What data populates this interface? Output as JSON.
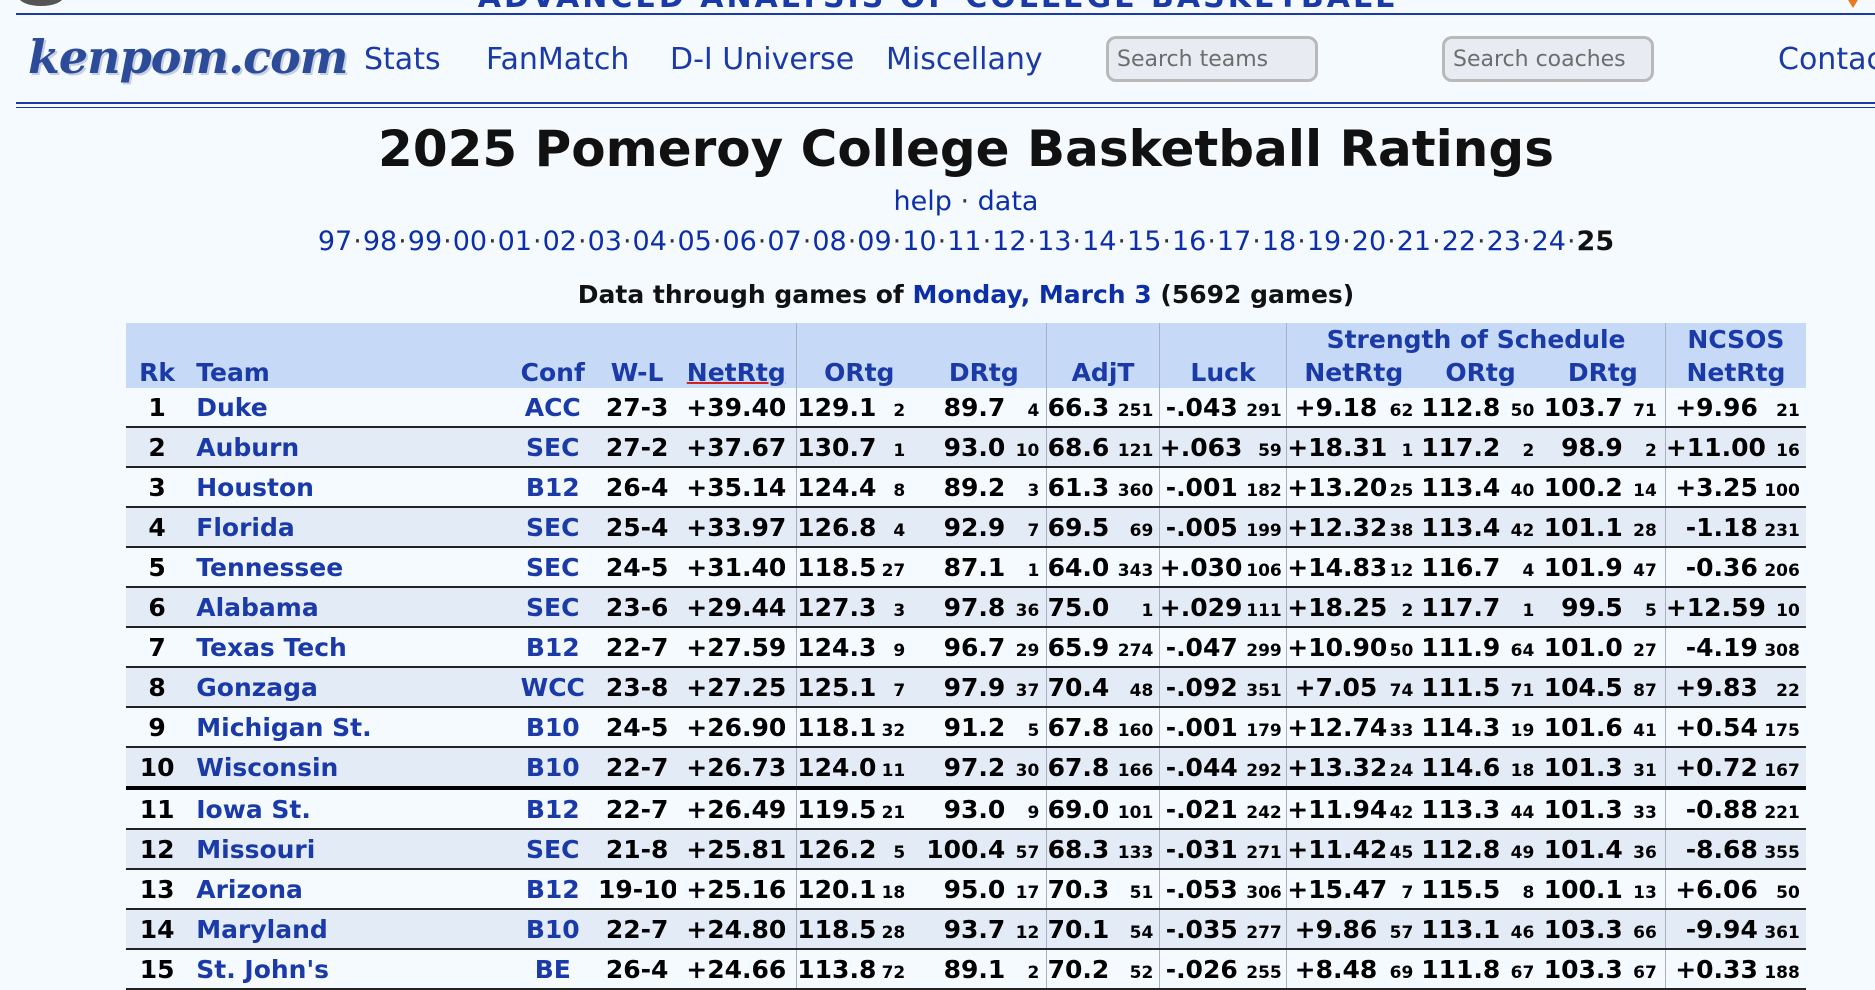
{
  "top_banner": {
    "title": "ADVANCED ANALYSIS OF COLLEGE BASKETBALL"
  },
  "nav": {
    "logo": "kenpom.com",
    "links": [
      "Stats",
      "FanMatch",
      "D-I Universe",
      "Miscellany"
    ],
    "search_teams_placeholder": "Search teams",
    "search_coaches_placeholder": "Search coaches",
    "contact": "Contac"
  },
  "page_title": "2025 Pomeroy College Basketball Ratings",
  "help_links": {
    "help": "help",
    "sep": "·",
    "data": "data"
  },
  "years": [
    "97",
    "98",
    "99",
    "00",
    "01",
    "02",
    "03",
    "04",
    "05",
    "06",
    "07",
    "08",
    "09",
    "10",
    "11",
    "12",
    "13",
    "14",
    "15",
    "16",
    "17",
    "18",
    "19",
    "20",
    "21",
    "22",
    "23",
    "24"
  ],
  "current_year": "25",
  "data_through": {
    "prefix": "Data through games of",
    "date": "Monday, March 3",
    "games": "(5692 games)"
  },
  "table": {
    "group_headers": {
      "sos": "Strength of Schedule",
      "ncsos": "NCSOS"
    },
    "headers": {
      "rk": "Rk",
      "team": "Team",
      "conf": "Conf",
      "wl": "W-L",
      "netrtg": "NetRtg",
      "ortg": "ORtg",
      "drtg": "DRtg",
      "adjt": "AdjT",
      "luck": "Luck",
      "sos_netrtg": "NetRtg",
      "sos_ortg": "ORtg",
      "sos_drtg": "DRtg",
      "ncsos_netrtg": "NetRtg"
    },
    "rows": [
      {
        "rk": "1",
        "team": "Duke",
        "conf": "ACC",
        "wl": "27-3",
        "net": "+39.40",
        "ortg": "129.1",
        "ortg_rk": "2",
        "drtg": "89.7",
        "drtg_rk": "4",
        "adjt": "66.3",
        "adjt_rk": "251",
        "luck": "-.043",
        "luck_rk": "291",
        "sos_net": "+9.18",
        "sos_net_rk": "62",
        "sos_o": "112.8",
        "sos_o_rk": "50",
        "sos_d": "103.7",
        "sos_d_rk": "71",
        "nc": "+9.96",
        "nc_rk": "21"
      },
      {
        "rk": "2",
        "team": "Auburn",
        "conf": "SEC",
        "wl": "27-2",
        "net": "+37.67",
        "ortg": "130.7",
        "ortg_rk": "1",
        "drtg": "93.0",
        "drtg_rk": "10",
        "adjt": "68.6",
        "adjt_rk": "121",
        "luck": "+.063",
        "luck_rk": "59",
        "sos_net": "+18.31",
        "sos_net_rk": "1",
        "sos_o": "117.2",
        "sos_o_rk": "2",
        "sos_d": "98.9",
        "sos_d_rk": "2",
        "nc": "+11.00",
        "nc_rk": "16"
      },
      {
        "rk": "3",
        "team": "Houston",
        "conf": "B12",
        "wl": "26-4",
        "net": "+35.14",
        "ortg": "124.4",
        "ortg_rk": "8",
        "drtg": "89.2",
        "drtg_rk": "3",
        "adjt": "61.3",
        "adjt_rk": "360",
        "luck": "-.001",
        "luck_rk": "182",
        "sos_net": "+13.20",
        "sos_net_rk": "25",
        "sos_o": "113.4",
        "sos_o_rk": "40",
        "sos_d": "100.2",
        "sos_d_rk": "14",
        "nc": "+3.25",
        "nc_rk": "100"
      },
      {
        "rk": "4",
        "team": "Florida",
        "conf": "SEC",
        "wl": "25-4",
        "net": "+33.97",
        "ortg": "126.8",
        "ortg_rk": "4",
        "drtg": "92.9",
        "drtg_rk": "7",
        "adjt": "69.5",
        "adjt_rk": "69",
        "luck": "-.005",
        "luck_rk": "199",
        "sos_net": "+12.32",
        "sos_net_rk": "38",
        "sos_o": "113.4",
        "sos_o_rk": "42",
        "sos_d": "101.1",
        "sos_d_rk": "28",
        "nc": "-1.18",
        "nc_rk": "231"
      },
      {
        "rk": "5",
        "team": "Tennessee",
        "conf": "SEC",
        "wl": "24-5",
        "net": "+31.40",
        "ortg": "118.5",
        "ortg_rk": "27",
        "drtg": "87.1",
        "drtg_rk": "1",
        "adjt": "64.0",
        "adjt_rk": "343",
        "luck": "+.030",
        "luck_rk": "106",
        "sos_net": "+14.83",
        "sos_net_rk": "12",
        "sos_o": "116.7",
        "sos_o_rk": "4",
        "sos_d": "101.9",
        "sos_d_rk": "47",
        "nc": "-0.36",
        "nc_rk": "206"
      },
      {
        "rk": "6",
        "team": "Alabama",
        "conf": "SEC",
        "wl": "23-6",
        "net": "+29.44",
        "ortg": "127.3",
        "ortg_rk": "3",
        "drtg": "97.8",
        "drtg_rk": "36",
        "adjt": "75.0",
        "adjt_rk": "1",
        "luck": "+.029",
        "luck_rk": "111",
        "sos_net": "+18.25",
        "sos_net_rk": "2",
        "sos_o": "117.7",
        "sos_o_rk": "1",
        "sos_d": "99.5",
        "sos_d_rk": "5",
        "nc": "+12.59",
        "nc_rk": "10"
      },
      {
        "rk": "7",
        "team": "Texas Tech",
        "conf": "B12",
        "wl": "22-7",
        "net": "+27.59",
        "ortg": "124.3",
        "ortg_rk": "9",
        "drtg": "96.7",
        "drtg_rk": "29",
        "adjt": "65.9",
        "adjt_rk": "274",
        "luck": "-.047",
        "luck_rk": "299",
        "sos_net": "+10.90",
        "sos_net_rk": "50",
        "sos_o": "111.9",
        "sos_o_rk": "64",
        "sos_d": "101.0",
        "sos_d_rk": "27",
        "nc": "-4.19",
        "nc_rk": "308"
      },
      {
        "rk": "8",
        "team": "Gonzaga",
        "conf": "WCC",
        "wl": "23-8",
        "net": "+27.25",
        "ortg": "125.1",
        "ortg_rk": "7",
        "drtg": "97.9",
        "drtg_rk": "37",
        "adjt": "70.4",
        "adjt_rk": "48",
        "luck": "-.092",
        "luck_rk": "351",
        "sos_net": "+7.05",
        "sos_net_rk": "74",
        "sos_o": "111.5",
        "sos_o_rk": "71",
        "sos_d": "104.5",
        "sos_d_rk": "87",
        "nc": "+9.83",
        "nc_rk": "22"
      },
      {
        "rk": "9",
        "team": "Michigan St.",
        "conf": "B10",
        "wl": "24-5",
        "net": "+26.90",
        "ortg": "118.1",
        "ortg_rk": "32",
        "drtg": "91.2",
        "drtg_rk": "5",
        "adjt": "67.8",
        "adjt_rk": "160",
        "luck": "-.001",
        "luck_rk": "179",
        "sos_net": "+12.74",
        "sos_net_rk": "33",
        "sos_o": "114.3",
        "sos_o_rk": "19",
        "sos_d": "101.6",
        "sos_d_rk": "41",
        "nc": "+0.54",
        "nc_rk": "175"
      },
      {
        "rk": "10",
        "team": "Wisconsin",
        "conf": "B10",
        "wl": "22-7",
        "net": "+26.73",
        "ortg": "124.0",
        "ortg_rk": "11",
        "drtg": "97.2",
        "drtg_rk": "30",
        "adjt": "67.8",
        "adjt_rk": "166",
        "luck": "-.044",
        "luck_rk": "292",
        "sos_net": "+13.32",
        "sos_net_rk": "24",
        "sos_o": "114.6",
        "sos_o_rk": "18",
        "sos_d": "101.3",
        "sos_d_rk": "31",
        "nc": "+0.72",
        "nc_rk": "167"
      },
      {
        "rk": "11",
        "team": "Iowa St.",
        "conf": "B12",
        "wl": "22-7",
        "net": "+26.49",
        "ortg": "119.5",
        "ortg_rk": "21",
        "drtg": "93.0",
        "drtg_rk": "9",
        "adjt": "69.0",
        "adjt_rk": "101",
        "luck": "-.021",
        "luck_rk": "242",
        "sos_net": "+11.94",
        "sos_net_rk": "42",
        "sos_o": "113.3",
        "sos_o_rk": "44",
        "sos_d": "101.3",
        "sos_d_rk": "33",
        "nc": "-0.88",
        "nc_rk": "221"
      },
      {
        "rk": "12",
        "team": "Missouri",
        "conf": "SEC",
        "wl": "21-8",
        "net": "+25.81",
        "ortg": "126.2",
        "ortg_rk": "5",
        "drtg": "100.4",
        "drtg_rk": "57",
        "adjt": "68.3",
        "adjt_rk": "133",
        "luck": "-.031",
        "luck_rk": "271",
        "sos_net": "+11.42",
        "sos_net_rk": "45",
        "sos_o": "112.8",
        "sos_o_rk": "49",
        "sos_d": "101.4",
        "sos_d_rk": "36",
        "nc": "-8.68",
        "nc_rk": "355"
      },
      {
        "rk": "13",
        "team": "Arizona",
        "conf": "B12",
        "wl": "19-10",
        "net": "+25.16",
        "ortg": "120.1",
        "ortg_rk": "18",
        "drtg": "95.0",
        "drtg_rk": "17",
        "adjt": "70.3",
        "adjt_rk": "51",
        "luck": "-.053",
        "luck_rk": "306",
        "sos_net": "+15.47",
        "sos_net_rk": "7",
        "sos_o": "115.5",
        "sos_o_rk": "8",
        "sos_d": "100.1",
        "sos_d_rk": "13",
        "nc": "+6.06",
        "nc_rk": "50"
      },
      {
        "rk": "14",
        "team": "Maryland",
        "conf": "B10",
        "wl": "22-7",
        "net": "+24.80",
        "ortg": "118.5",
        "ortg_rk": "28",
        "drtg": "93.7",
        "drtg_rk": "12",
        "adjt": "70.1",
        "adjt_rk": "54",
        "luck": "-.035",
        "luck_rk": "277",
        "sos_net": "+9.86",
        "sos_net_rk": "57",
        "sos_o": "113.1",
        "sos_o_rk": "46",
        "sos_d": "103.3",
        "sos_d_rk": "66",
        "nc": "-9.94",
        "nc_rk": "361"
      },
      {
        "rk": "15",
        "team": "St. John's",
        "conf": "BE",
        "wl": "26-4",
        "net": "+24.66",
        "ortg": "113.8",
        "ortg_rk": "72",
        "drtg": "89.1",
        "drtg_rk": "2",
        "adjt": "70.2",
        "adjt_rk": "52",
        "luck": "-.026",
        "luck_rk": "255",
        "sos_net": "+8.48",
        "sos_net_rk": "69",
        "sos_o": "111.8",
        "sos_o_rk": "67",
        "sos_d": "103.3",
        "sos_d_rk": "67",
        "nc": "+0.33",
        "nc_rk": "188"
      }
    ]
  }
}
